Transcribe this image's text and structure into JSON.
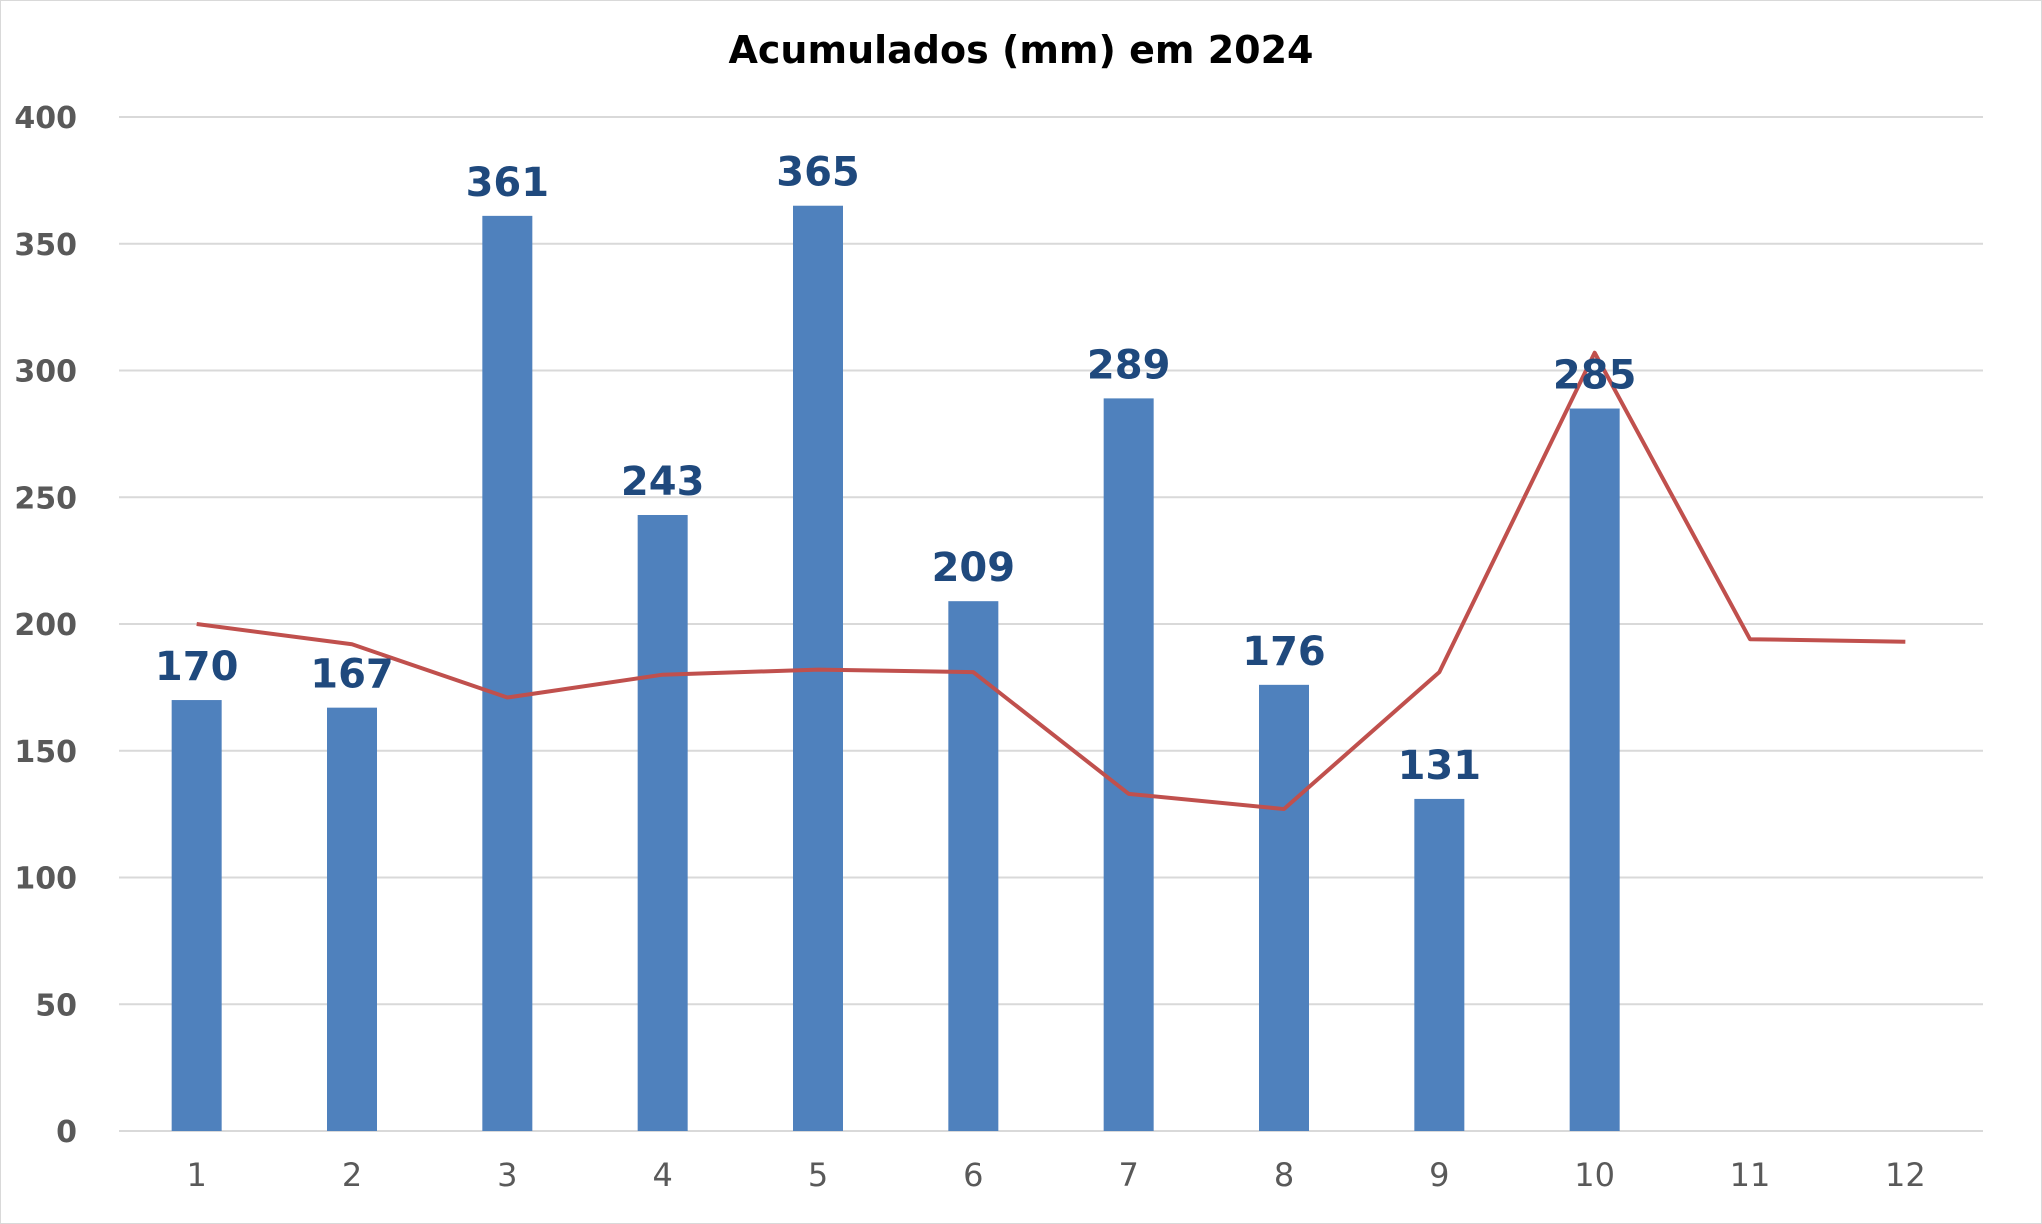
{
  "chart_data": {
    "type": "bar",
    "title": "Acumulados (mm) em 2024",
    "xlabel": "",
    "ylabel": "",
    "ylim": [
      0,
      400
    ],
    "y_ticks": [
      0,
      50,
      100,
      150,
      200,
      250,
      300,
      350,
      400
    ],
    "categories": [
      "1",
      "2",
      "3",
      "4",
      "5",
      "6",
      "7",
      "8",
      "9",
      "10",
      "11",
      "12"
    ],
    "grid": true,
    "legend": "none",
    "series": [
      {
        "type": "bar",
        "color": "#4f81bd",
        "values": [
          170,
          167,
          361,
          243,
          365,
          209,
          289,
          176,
          131,
          285,
          null,
          null
        ],
        "data_labels": [
          "170",
          "167",
          "361",
          "243",
          "365",
          "209",
          "289",
          "176",
          "131",
          "285"
        ]
      },
      {
        "type": "line",
        "color": "#c0504d",
        "values": [
          200,
          192,
          171,
          180,
          182,
          181,
          133,
          127,
          181,
          307,
          194,
          193
        ]
      }
    ],
    "colors": {
      "label_text": "#1f497d",
      "grid": "#d9d9d9",
      "tick_text": "#595959"
    }
  }
}
